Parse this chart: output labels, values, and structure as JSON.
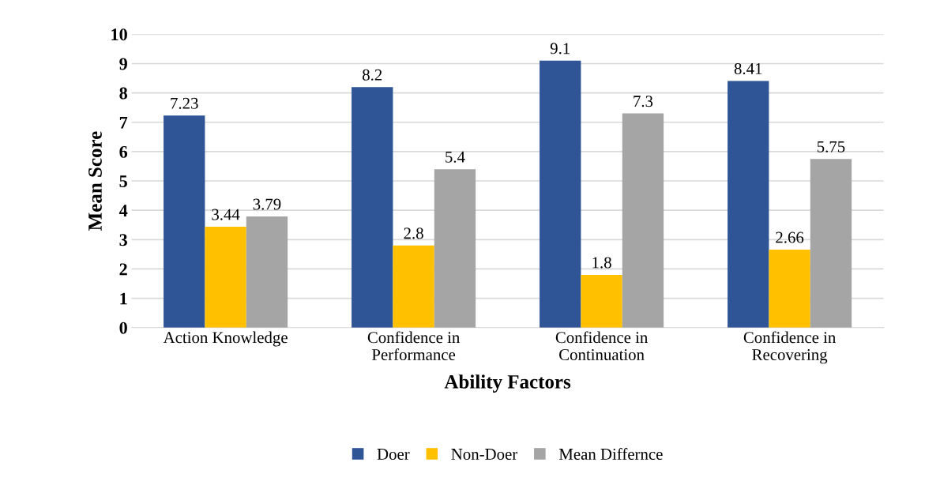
{
  "chart_data": {
    "type": "bar",
    "xlabel": "Ability Factors",
    "ylabel": "Mean Score",
    "categories": [
      "Action Knowledge",
      "Confidence in\nPerformance",
      "Confidence in\nContinuation",
      "Confidence in\nRecovering"
    ],
    "series": [
      {
        "name": "Doer",
        "color": "#2f5597",
        "values": [
          7.23,
          8.2,
          9.1,
          8.41
        ]
      },
      {
        "name": "Non-Doer",
        "color": "#ffc000",
        "values": [
          3.44,
          2.8,
          1.8,
          2.66
        ]
      },
      {
        "name": "Mean Differnce",
        "color": "#a5a5a5",
        "values": [
          3.79,
          5.4,
          7.3,
          5.75
        ]
      }
    ],
    "ylim": [
      0,
      10
    ],
    "yticks": [
      0,
      1,
      2,
      3,
      4,
      5,
      6,
      7,
      8,
      9,
      10
    ],
    "grid": "y",
    "legend": "bottom",
    "data_labels": true
  }
}
